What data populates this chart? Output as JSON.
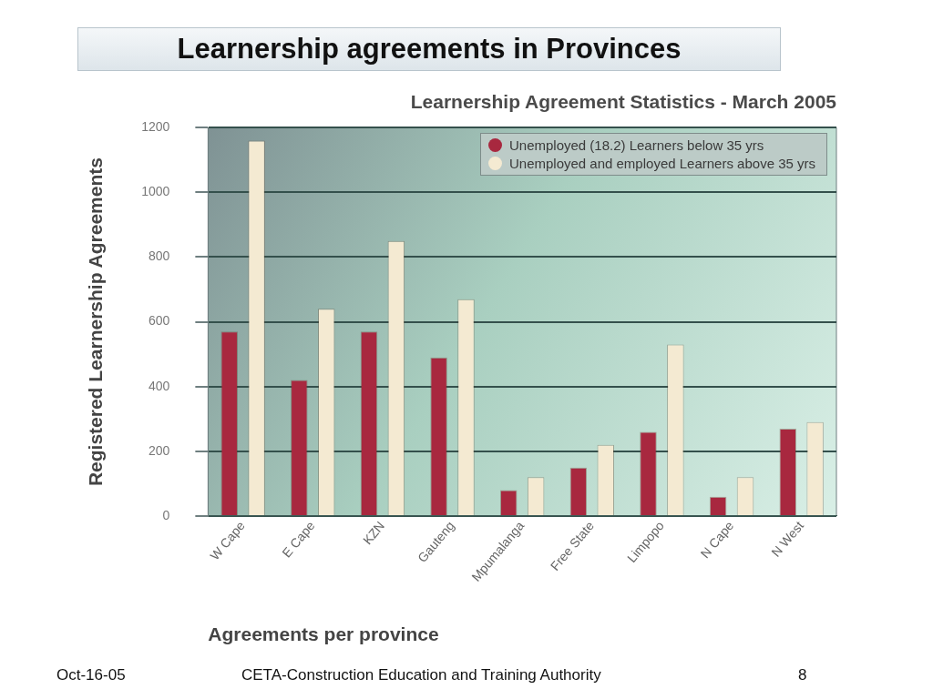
{
  "chart_data": {
    "type": "bar",
    "title": "Learnership agreements in Provinces",
    "subtitle": "Learnership Agreement Statistics - March 2005",
    "xlabel": "Agreements per province",
    "ylabel": "Registered Learnership Agreements",
    "categories": [
      "W Cape",
      "E Cape",
      "KZN",
      "Gauteng",
      "Mpumalanga",
      "Free State",
      "Limpopo",
      "N Cape",
      "N West"
    ],
    "series": [
      {
        "name": "Unemployed (18.2) Learners below 35 yrs",
        "color": "#a8283f",
        "values": [
          570,
          420,
          570,
          490,
          80,
          150,
          260,
          60,
          270
        ]
      },
      {
        "name": "Unemployed and employed Learners above 35 yrs",
        "color": "#f4ead2",
        "values": [
          1160,
          640,
          850,
          670,
          120,
          220,
          530,
          120,
          290
        ]
      }
    ],
    "ylim": [
      0,
      1200
    ],
    "yticks": [
      0,
      200,
      400,
      600,
      800,
      1000,
      1200
    ],
    "grid": "y",
    "legend": "top right",
    "annotations": [
      "Oct-16-05",
      "CETA-Construction Education and Training Authority",
      "8"
    ]
  }
}
